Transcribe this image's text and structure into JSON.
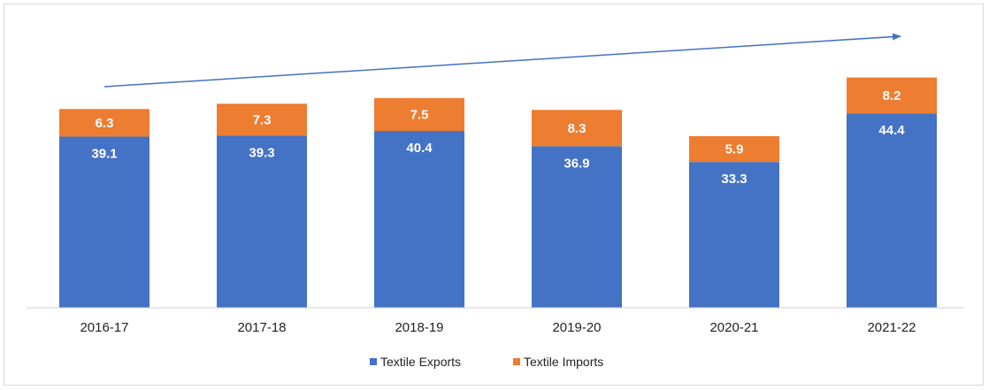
{
  "chart_data": {
    "type": "bar",
    "stacked": true,
    "categories": [
      "2016-17",
      "2017-18",
      "2018-19",
      "2019-20",
      "2020-21",
      "2021-22"
    ],
    "series": [
      {
        "name": "Textile Exports",
        "values": [
          39.1,
          39.3,
          40.4,
          36.9,
          33.3,
          44.4
        ],
        "color": "#4472c4"
      },
      {
        "name": "Textile Imports",
        "values": [
          6.3,
          7.3,
          7.5,
          8.3,
          5.9,
          8.2
        ],
        "color": "#ed7d31"
      }
    ],
    "ylim": [
      0,
      55
    ],
    "grid": false,
    "legend": "bottom",
    "annotation": {
      "type": "trend-arrow",
      "color": "#4472c4"
    },
    "title": "",
    "xlabel": "",
    "ylabel": ""
  }
}
